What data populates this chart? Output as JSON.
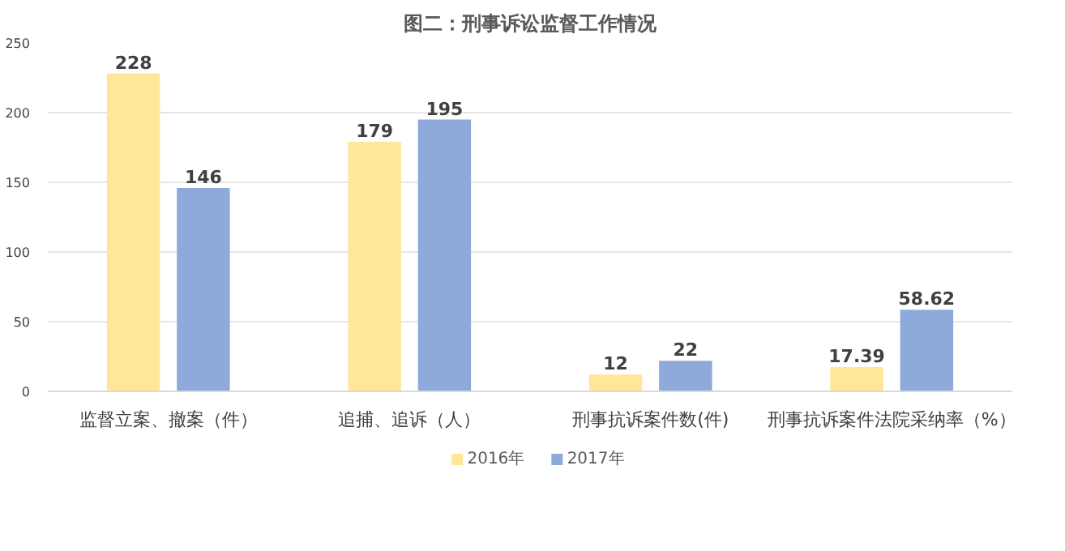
{
  "chart_data": {
    "type": "bar",
    "title": "图二：刑事诉讼监督工作情况",
    "categories": [
      "监督立案、撤案（件）",
      "追捕、追诉（人）",
      "刑事抗诉案件数(件)",
      "刑事抗诉案件法院采纳率（%）"
    ],
    "series": [
      {
        "name": "2016年",
        "color": "#ffe699",
        "values": [
          228,
          179,
          12,
          17.39
        ]
      },
      {
        "name": "2017年",
        "color": "#8eaadb",
        "values": [
          146,
          195,
          22,
          58.62
        ]
      }
    ],
    "ylim": [
      0,
      250
    ],
    "yticks": [
      0,
      50,
      100,
      150,
      200,
      250
    ],
    "grid": "y",
    "legend": "bottom",
    "data_labels": true
  }
}
